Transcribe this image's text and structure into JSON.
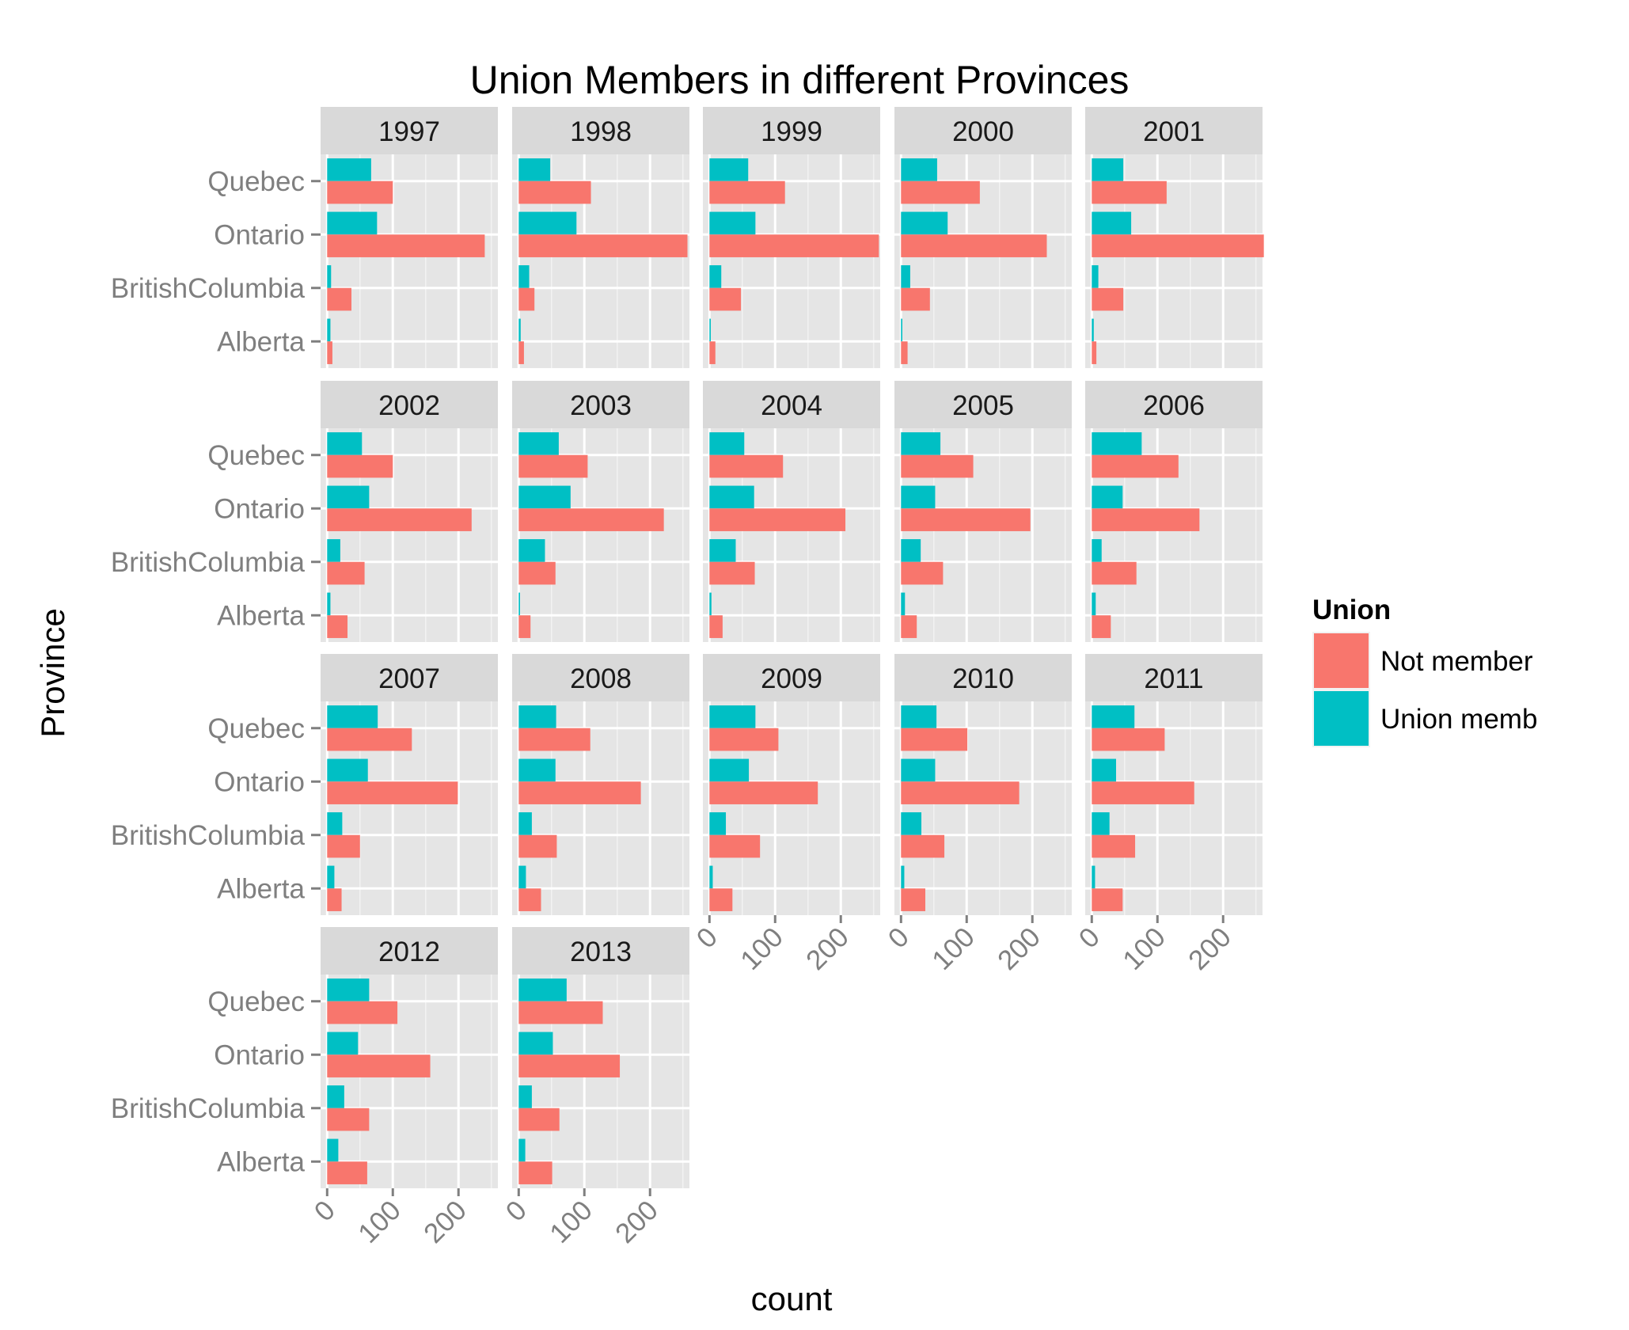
{
  "chart_data": {
    "type": "bar",
    "title": "Union Members in different Provinces",
    "xlabel": "count",
    "ylabel": "Province",
    "categories": [
      "Quebec",
      "Ontario",
      "BritishColumbia",
      "Alberta"
    ],
    "x_ticks": [
      0,
      100,
      200
    ],
    "xlim": [
      -10,
      260
    ],
    "grid": true,
    "legend": {
      "title": "Union",
      "placement": "right",
      "entries": [
        {
          "name": "Not member",
          "color": "#F8766D"
        },
        {
          "name": "Union memb",
          "color": "#00BFC4"
        }
      ]
    },
    "facet_by": "year",
    "facets": [
      {
        "year": "1997",
        "not_member": [
          100,
          240,
          37,
          8
        ],
        "union_memb": [
          67,
          76,
          6,
          5
        ]
      },
      {
        "year": "1998",
        "not_member": [
          110,
          257,
          24,
          8
        ],
        "union_memb": [
          48,
          88,
          16,
          3
        ]
      },
      {
        "year": "1999",
        "not_member": [
          115,
          258,
          48,
          9
        ],
        "union_memb": [
          59,
          70,
          18,
          2
        ]
      },
      {
        "year": "2000",
        "not_member": [
          120,
          222,
          44,
          10
        ],
        "union_memb": [
          55,
          71,
          14,
          2
        ]
      },
      {
        "year": "2001",
        "not_member": [
          114,
          262,
          48,
          7
        ],
        "union_memb": [
          48,
          60,
          10,
          3
        ]
      },
      {
        "year": "2002",
        "not_member": [
          100,
          220,
          57,
          31
        ],
        "union_memb": [
          53,
          64,
          20,
          5
        ]
      },
      {
        "year": "2003",
        "not_member": [
          105,
          221,
          56,
          18
        ],
        "union_memb": [
          61,
          79,
          40,
          2
        ]
      },
      {
        "year": "2004",
        "not_member": [
          112,
          207,
          69,
          20
        ],
        "union_memb": [
          53,
          68,
          40,
          3
        ]
      },
      {
        "year": "2005",
        "not_member": [
          110,
          197,
          64,
          24
        ],
        "union_memb": [
          60,
          52,
          30,
          6
        ]
      },
      {
        "year": "2006",
        "not_member": [
          132,
          164,
          68,
          29
        ],
        "union_memb": [
          76,
          47,
          15,
          6
        ]
      },
      {
        "year": "2007",
        "not_member": [
          129,
          199,
          50,
          22
        ],
        "union_memb": [
          77,
          62,
          23,
          11
        ]
      },
      {
        "year": "2008",
        "not_member": [
          109,
          186,
          58,
          34
        ],
        "union_memb": [
          57,
          56,
          20,
          11
        ]
      },
      {
        "year": "2009",
        "not_member": [
          105,
          165,
          77,
          35
        ],
        "union_memb": [
          70,
          60,
          25,
          5
        ]
      },
      {
        "year": "2010",
        "not_member": [
          101,
          180,
          66,
          37
        ],
        "union_memb": [
          54,
          52,
          31,
          5
        ]
      },
      {
        "year": "2011",
        "not_member": [
          111,
          156,
          66,
          47
        ],
        "union_memb": [
          65,
          37,
          27,
          5
        ]
      },
      {
        "year": "2012",
        "not_member": [
          107,
          157,
          64,
          61
        ],
        "union_memb": [
          64,
          47,
          26,
          17
        ]
      },
      {
        "year": "2013",
        "not_member": [
          128,
          154,
          62,
          51
        ],
        "union_memb": [
          73,
          52,
          20,
          10
        ]
      }
    ]
  }
}
